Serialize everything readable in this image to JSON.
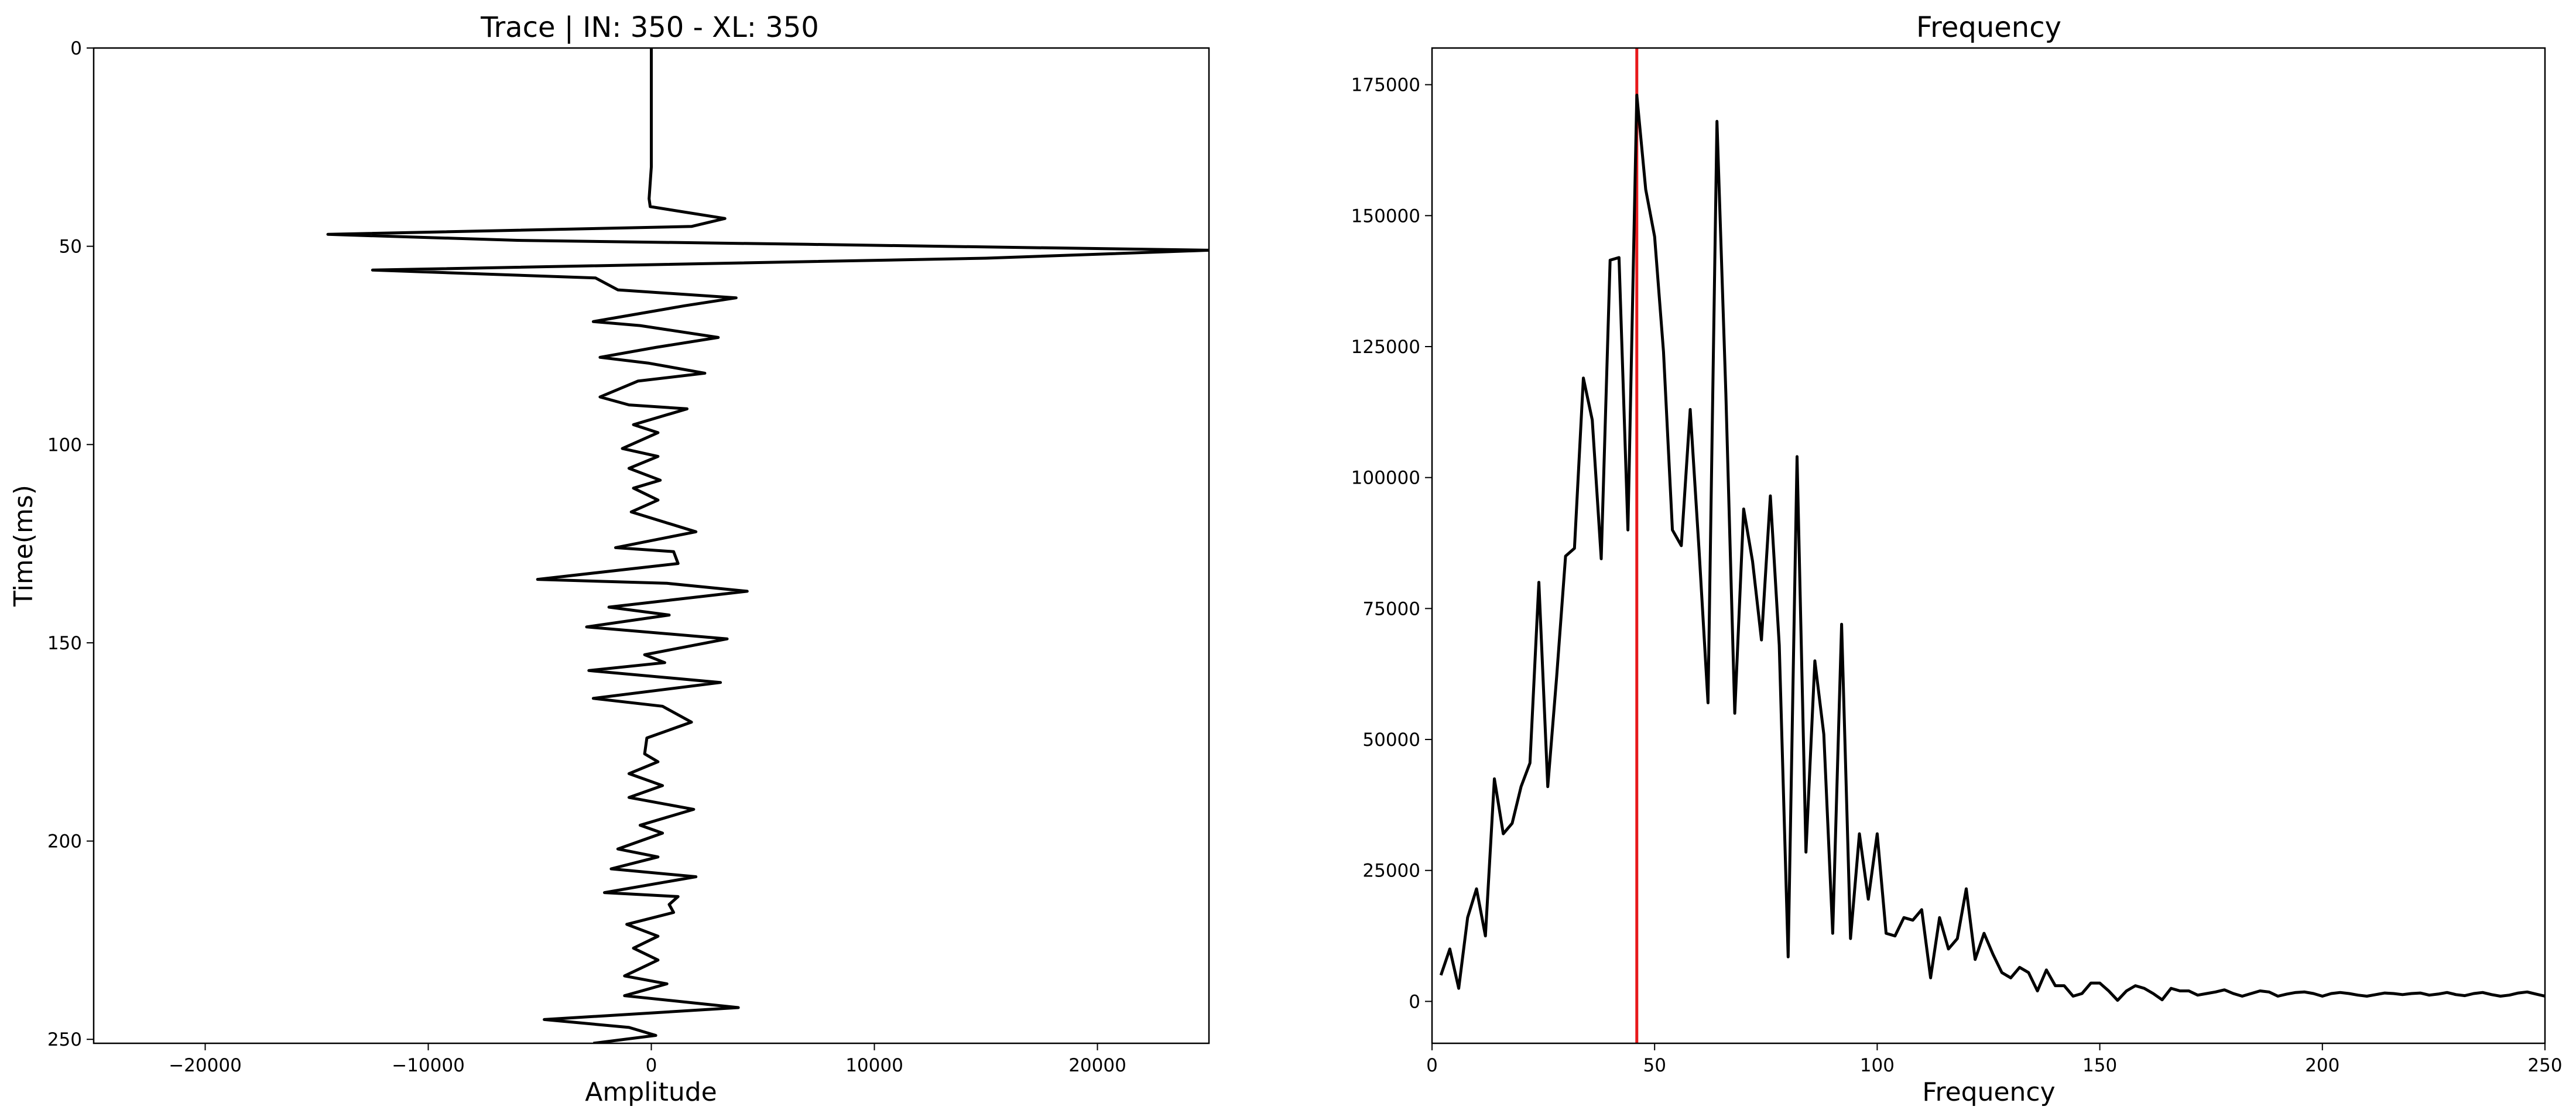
{
  "chart_data": [
    {
      "type": "line",
      "title": "Trace | IN: 350 - XL: 350",
      "xlabel": "Amplitude",
      "ylabel": "Time(ms)",
      "xlim": [
        -25000,
        25000
      ],
      "ylim": [
        251,
        0
      ],
      "x_ticks": [
        {
          "value": -20000,
          "label": "−20000"
        },
        {
          "value": -10000,
          "label": "−10000"
        },
        {
          "value": 0,
          "label": "0"
        },
        {
          "value": 10000,
          "label": "10000"
        },
        {
          "value": 20000,
          "label": "20000"
        }
      ],
      "y_ticks": [
        {
          "value": 0,
          "label": "0"
        },
        {
          "value": 50,
          "label": "50"
        },
        {
          "value": 100,
          "label": "100"
        },
        {
          "value": 150,
          "label": "150"
        },
        {
          "value": 200,
          "label": "200"
        },
        {
          "value": 250,
          "label": "250"
        }
      ],
      "line_color": "#000000",
      "series": [
        {
          "points": [
            [
              0,
              0
            ],
            [
              0,
              10
            ],
            [
              0,
              20
            ],
            [
              0,
              30
            ],
            [
              -100,
              38
            ],
            [
              -50,
              40
            ],
            [
              3300,
              43
            ],
            [
              1800,
              45
            ],
            [
              -14500,
              47
            ],
            [
              -6000,
              48.5
            ],
            [
              7000,
              49.5
            ],
            [
              25000,
              51
            ],
            [
              15000,
              53
            ],
            [
              -12500,
              56
            ],
            [
              -2500,
              58
            ],
            [
              -1500,
              61
            ],
            [
              3800,
              63
            ],
            [
              1500,
              65
            ],
            [
              -2600,
              69
            ],
            [
              -500,
              70
            ],
            [
              3000,
              73
            ],
            [
              200,
              75.5
            ],
            [
              -2300,
              78
            ],
            [
              -100,
              79.5
            ],
            [
              2400,
              82
            ],
            [
              -600,
              84
            ],
            [
              -2300,
              88
            ],
            [
              -1000,
              90
            ],
            [
              1600,
              91
            ],
            [
              -800,
              95
            ],
            [
              300,
              97
            ],
            [
              -1300,
              101
            ],
            [
              300,
              103
            ],
            [
              -1000,
              106
            ],
            [
              400,
              109
            ],
            [
              -800,
              111
            ],
            [
              300,
              114
            ],
            [
              -900,
              117
            ],
            [
              2000,
              122
            ],
            [
              -1600,
              126
            ],
            [
              1000,
              127
            ],
            [
              1200,
              130
            ],
            [
              -5100,
              134
            ],
            [
              700,
              135
            ],
            [
              4300,
              137
            ],
            [
              -1900,
              141
            ],
            [
              800,
              143
            ],
            [
              -2900,
              146
            ],
            [
              3400,
              149
            ],
            [
              -300,
              153
            ],
            [
              600,
              155
            ],
            [
              -2800,
              157
            ],
            [
              3100,
              160
            ],
            [
              -2600,
              164
            ],
            [
              500,
              166
            ],
            [
              1800,
              170
            ],
            [
              -200,
              174
            ],
            [
              -300,
              178
            ],
            [
              300,
              180
            ],
            [
              -1000,
              183
            ],
            [
              500,
              186
            ],
            [
              -1000,
              189
            ],
            [
              1900,
              192
            ],
            [
              -500,
              196
            ],
            [
              500,
              198
            ],
            [
              -1500,
              202
            ],
            [
              300,
              204
            ],
            [
              -1800,
              207
            ],
            [
              2000,
              209
            ],
            [
              -2100,
              213
            ],
            [
              1200,
              214
            ],
            [
              800,
              216
            ],
            [
              1000,
              218
            ],
            [
              -1100,
              221
            ],
            [
              300,
              224
            ],
            [
              -800,
              227
            ],
            [
              300,
              230
            ],
            [
              -1200,
              234
            ],
            [
              700,
              236
            ],
            [
              -1200,
              239
            ],
            [
              3900,
              242
            ],
            [
              -4800,
              245
            ],
            [
              -1000,
              247
            ],
            [
              200,
              249
            ],
            [
              -2600,
              251
            ]
          ]
        }
      ]
    },
    {
      "type": "line",
      "title": "Frequency",
      "xlabel": "Frequency",
      "ylabel": "",
      "xlim": [
        0,
        250
      ],
      "ylim": [
        -8000,
        182000
      ],
      "x_ticks": [
        {
          "value": 0,
          "label": "0"
        },
        {
          "value": 50,
          "label": "50"
        },
        {
          "value": 100,
          "label": "100"
        },
        {
          "value": 150,
          "label": "150"
        },
        {
          "value": 200,
          "label": "200"
        },
        {
          "value": 250,
          "label": "250"
        }
      ],
      "y_ticks": [
        {
          "value": 0,
          "label": "0"
        },
        {
          "value": 25000,
          "label": "25000"
        },
        {
          "value": 50000,
          "label": "50000"
        },
        {
          "value": 75000,
          "label": "75000"
        },
        {
          "value": 100000,
          "label": "100000"
        },
        {
          "value": 125000,
          "label": "125000"
        },
        {
          "value": 150000,
          "label": "150000"
        },
        {
          "value": 175000,
          "label": "175000"
        }
      ],
      "line_color": "#000000",
      "marker_line": {
        "x": 46,
        "color": "#e8191b"
      },
      "series": [
        {
          "points": [
            [
              2,
              5000
            ],
            [
              4,
              10000
            ],
            [
              6,
              2500
            ],
            [
              8,
              16000
            ],
            [
              10,
              21500
            ],
            [
              12,
              12500
            ],
            [
              14,
              42500
            ],
            [
              16,
              32000
            ],
            [
              18,
              34000
            ],
            [
              20,
              41000
            ],
            [
              22,
              45500
            ],
            [
              24,
              80000
            ],
            [
              26,
              41000
            ],
            [
              28,
              62000
            ],
            [
              30,
              85000
            ],
            [
              32,
              86500
            ],
            [
              34,
              119000
            ],
            [
              36,
              111000
            ],
            [
              38,
              84500
            ],
            [
              40,
              141500
            ],
            [
              42,
              142000
            ],
            [
              44,
              90000
            ],
            [
              46,
              173000
            ],
            [
              48,
              155000
            ],
            [
              50,
              146000
            ],
            [
              52,
              124000
            ],
            [
              54,
              90000
            ],
            [
              56,
              87000
            ],
            [
              58,
              113000
            ],
            [
              60,
              86000
            ],
            [
              62,
              57000
            ],
            [
              64,
              168000
            ],
            [
              66,
              116000
            ],
            [
              68,
              55000
            ],
            [
              70,
              94000
            ],
            [
              72,
              84000
            ],
            [
              74,
              69000
            ],
            [
              76,
              96500
            ],
            [
              78,
              68000
            ],
            [
              80,
              8500
            ],
            [
              82,
              104000
            ],
            [
              84,
              28500
            ],
            [
              86,
              65000
            ],
            [
              88,
              51000
            ],
            [
              90,
              13000
            ],
            [
              92,
              72000
            ],
            [
              94,
              12000
            ],
            [
              96,
              32000
            ],
            [
              98,
              19500
            ],
            [
              100,
              32000
            ],
            [
              102,
              13000
            ],
            [
              104,
              12500
            ],
            [
              106,
              16000
            ],
            [
              108,
              15500
            ],
            [
              110,
              17500
            ],
            [
              112,
              4500
            ],
            [
              114,
              16000
            ],
            [
              116,
              10000
            ],
            [
              118,
              12000
            ],
            [
              120,
              21500
            ],
            [
              122,
              8000
            ],
            [
              124,
              13000
            ],
            [
              126,
              9000
            ],
            [
              128,
              5500
            ],
            [
              130,
              4500
            ],
            [
              132,
              6500
            ],
            [
              134,
              5500
            ],
            [
              136,
              2000
            ],
            [
              138,
              6000
            ],
            [
              140,
              3000
            ],
            [
              142,
              3000
            ],
            [
              144,
              1000
            ],
            [
              146,
              1500
            ],
            [
              148,
              3500
            ],
            [
              150,
              3500
            ],
            [
              152,
              2000
            ],
            [
              154,
              200
            ],
            [
              156,
              2000
            ],
            [
              158,
              3000
            ],
            [
              160,
              2500
            ],
            [
              162,
              1500
            ],
            [
              164,
              300
            ],
            [
              166,
              2500
            ],
            [
              168,
              2000
            ],
            [
              170,
              2000
            ],
            [
              172,
              1200
            ],
            [
              174,
              1500
            ],
            [
              176,
              1800
            ],
            [
              178,
              2200
            ],
            [
              180,
              1500
            ],
            [
              182,
              1000
            ],
            [
              184,
              1500
            ],
            [
              186,
              2000
            ],
            [
              188,
              1800
            ],
            [
              190,
              1000
            ],
            [
              192,
              1400
            ],
            [
              194,
              1700
            ],
            [
              196,
              1800
            ],
            [
              198,
              1500
            ],
            [
              200,
              1000
            ],
            [
              202,
              1500
            ],
            [
              204,
              1700
            ],
            [
              206,
              1500
            ],
            [
              208,
              1200
            ],
            [
              210,
              1000
            ],
            [
              212,
              1300
            ],
            [
              214,
              1600
            ],
            [
              216,
              1500
            ],
            [
              218,
              1300
            ],
            [
              220,
              1500
            ],
            [
              222,
              1600
            ],
            [
              224,
              1200
            ],
            [
              226,
              1400
            ],
            [
              228,
              1700
            ],
            [
              230,
              1300
            ],
            [
              232,
              1100
            ],
            [
              234,
              1500
            ],
            [
              236,
              1700
            ],
            [
              238,
              1300
            ],
            [
              240,
              1000
            ],
            [
              242,
              1200
            ],
            [
              244,
              1600
            ],
            [
              246,
              1800
            ],
            [
              248,
              1400
            ],
            [
              250,
              1000
            ]
          ]
        }
      ]
    }
  ]
}
